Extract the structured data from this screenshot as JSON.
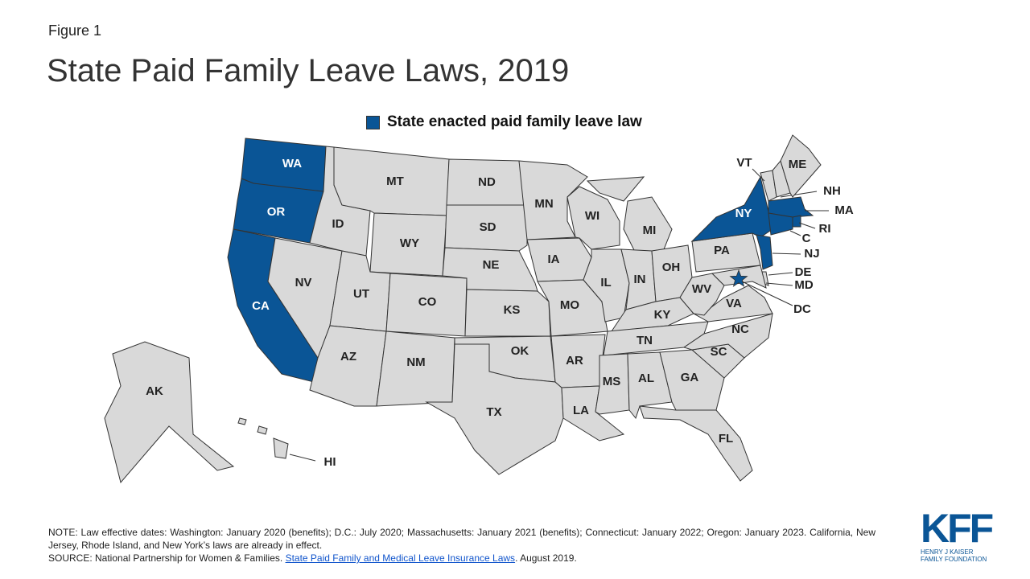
{
  "header": {
    "figure": "Figure 1",
    "title": "State Paid Family Leave Laws, 2019"
  },
  "legend": {
    "label": "State enacted paid family leave law",
    "color": "#0a5596"
  },
  "map": {
    "enacted_color": "#0a5596",
    "other_color": "#d9d9d9",
    "states": [
      {
        "label": "WA",
        "enacted": true
      },
      {
        "label": "OR",
        "enacted": true
      },
      {
        "label": "CA",
        "enacted": true
      },
      {
        "label": "NV",
        "enacted": false
      },
      {
        "label": "ID",
        "enacted": false
      },
      {
        "label": "MT",
        "enacted": false
      },
      {
        "label": "WY",
        "enacted": false
      },
      {
        "label": "UT",
        "enacted": false
      },
      {
        "label": "CO",
        "enacted": false
      },
      {
        "label": "AZ",
        "enacted": false
      },
      {
        "label": "NM",
        "enacted": false
      },
      {
        "label": "ND",
        "enacted": false
      },
      {
        "label": "SD",
        "enacted": false
      },
      {
        "label": "NE",
        "enacted": false
      },
      {
        "label": "KS",
        "enacted": false
      },
      {
        "label": "OK",
        "enacted": false
      },
      {
        "label": "TX",
        "enacted": false
      },
      {
        "label": "MN",
        "enacted": false
      },
      {
        "label": "IA",
        "enacted": false
      },
      {
        "label": "MO",
        "enacted": false
      },
      {
        "label": "AR",
        "enacted": false
      },
      {
        "label": "LA",
        "enacted": false
      },
      {
        "label": "WI",
        "enacted": false
      },
      {
        "label": "IL",
        "enacted": false
      },
      {
        "label": "MI",
        "enacted": false
      },
      {
        "label": "IN",
        "enacted": false
      },
      {
        "label": "OH",
        "enacted": false
      },
      {
        "label": "KY",
        "enacted": false
      },
      {
        "label": "TN",
        "enacted": false
      },
      {
        "label": "MS",
        "enacted": false
      },
      {
        "label": "AL",
        "enacted": false
      },
      {
        "label": "GA",
        "enacted": false
      },
      {
        "label": "FL",
        "enacted": false
      },
      {
        "label": "SC",
        "enacted": false
      },
      {
        "label": "NC",
        "enacted": false
      },
      {
        "label": "VA",
        "enacted": false
      },
      {
        "label": "WV",
        "enacted": false
      },
      {
        "label": "PA",
        "enacted": false
      },
      {
        "label": "NY",
        "enacted": true
      },
      {
        "label": "NJ",
        "enacted": true
      },
      {
        "label": "DE",
        "enacted": false
      },
      {
        "label": "MD",
        "enacted": false
      },
      {
        "label": "DC",
        "enacted": true
      },
      {
        "label": "VT",
        "enacted": false
      },
      {
        "label": "NH",
        "enacted": false
      },
      {
        "label": "ME",
        "enacted": false
      },
      {
        "label": "MA",
        "enacted": true
      },
      {
        "label": "RI",
        "enacted": true
      },
      {
        "label": "C",
        "enacted": true
      },
      {
        "label": "AK",
        "enacted": false
      },
      {
        "label": "HI",
        "enacted": false
      }
    ]
  },
  "footer": {
    "note": "NOTE: Law effective dates: Washington: January 2020 (benefits); D.C.: July 2020; Massachusetts: January 2021 (benefits); Connecticut: January 2022; Oregon: January 2023. California, New Jersey, Rhode Island, and New York’s laws are already in effect.",
    "source_prefix": "SOURCE: National Partnership for Women & Families.",
    "source_link": "State Paid Family and Medical Leave Insurance Laws",
    "source_suffix": ". August 2019."
  },
  "logo": {
    "name": "KFF",
    "subtitle": "HENRY J KAISER FAMILY FOUNDATION"
  }
}
